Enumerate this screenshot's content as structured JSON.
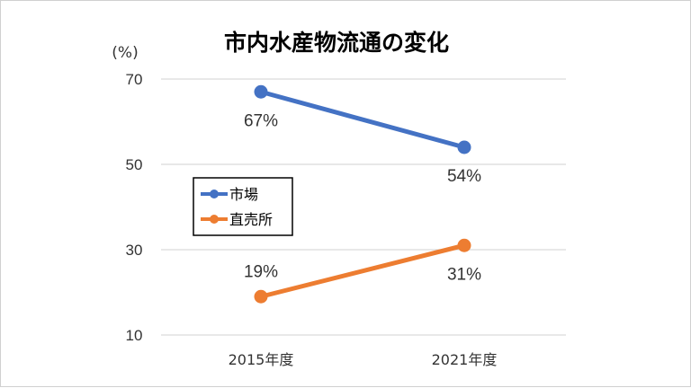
{
  "chart_data": {
    "type": "line",
    "title": "市内水産物流通の変化",
    "ylabel": "(%)",
    "xlabel": "",
    "categories": [
      "2015年度",
      "2021年度"
    ],
    "ylim": [
      10,
      70
    ],
    "yticks": [
      "70",
      "50",
      "30",
      "10"
    ],
    "grid": true,
    "legend": "inside-left",
    "series": [
      {
        "name": "市場",
        "values": [
          67,
          54
        ],
        "labels": [
          "67%",
          "54%"
        ],
        "color": "#4472c4",
        "label_position": "below"
      },
      {
        "name": "直売所",
        "values": [
          19,
          31
        ],
        "labels": [
          "19%",
          "31%"
        ],
        "color": "#ed7d31",
        "label_position": "above-below"
      }
    ]
  }
}
